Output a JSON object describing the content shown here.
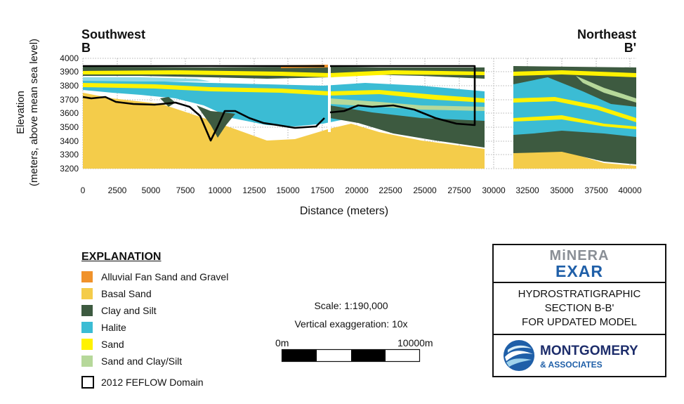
{
  "header": {
    "left_direction": "Southwest",
    "left_label": "B",
    "right_direction": "Northeast",
    "right_label": "B'"
  },
  "axes": {
    "ylabel_line1": "Elevation",
    "ylabel_line2": "(meters, above mean sea level)",
    "xlabel": "Distance (meters)",
    "y_ticks": [
      "4000",
      "3900",
      "3800",
      "3700",
      "3600",
      "3500",
      "3400",
      "3300",
      "3200"
    ],
    "x_ticks": [
      "0",
      "2500",
      "5000",
      "7500",
      "10000",
      "12500",
      "15000",
      "17500",
      "20000",
      "22500",
      "25000",
      "27500",
      "30000",
      "32500",
      "35000",
      "37500",
      "40000"
    ]
  },
  "legend": {
    "title": "EXPLANATION",
    "items": [
      {
        "label": "Alluvial Fan Sand and Gravel",
        "color": "#f0922b"
      },
      {
        "label": "Basal Sand",
        "color": "#f4cc4a"
      },
      {
        "label": "Clay and Silt",
        "color": "#3d5a40"
      },
      {
        "label": "Halite",
        "color": "#3bbcd4"
      },
      {
        "label": "Sand",
        "color": "#fff200"
      },
      {
        "label": "Sand and Clay/Silt",
        "color": "#b6d89a"
      }
    ],
    "domain_label": "2012 FEFLOW Domain"
  },
  "scale": {
    "scale_text": "Scale: 1:190,000",
    "exaggeration_text": "Vertical exaggeration: 10x",
    "left_label": "0m",
    "right_label": "10000m"
  },
  "title_block": {
    "logo_top": "MiNERA",
    "logo_bottom": "EXAR",
    "title_line1": "HYDROSTRATIGRAPHIC",
    "title_line2": "SECTION B-B'",
    "title_line3": "FOR UPDATED MODEL",
    "company_name": "MONTGOMERY",
    "company_sub": "& ASSOCIATES"
  },
  "colors": {
    "alluvial": "#f0922b",
    "basal_sand": "#f4cc4a",
    "clay_silt": "#3d5a40",
    "halite": "#3bbcd4",
    "sand": "#fff200",
    "sand_clay": "#b6d89a",
    "logo_blue": "#1f5fa8",
    "logo_gray": "#8a8f96",
    "company_navy": "#1d2d6b"
  }
}
